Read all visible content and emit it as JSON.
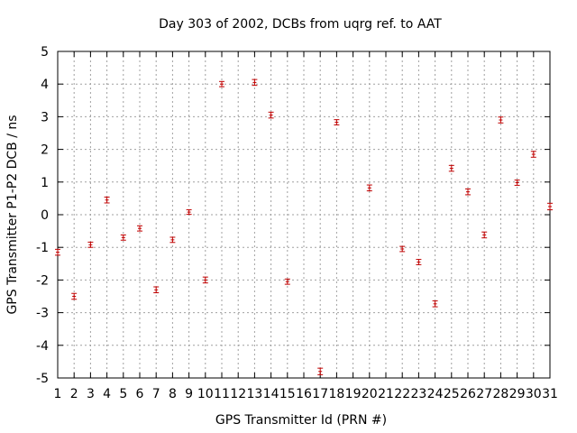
{
  "chart_data": {
    "type": "scatter",
    "title": "Day 303 of 2002, DCBs from uqrg ref. to AAT",
    "xlabel": "GPS Transmitter Id (PRN #)",
    "ylabel": "GPS Transmitter P1-P2 DCB / ns",
    "xlim": [
      1,
      31
    ],
    "ylim": [
      -5,
      5
    ],
    "xticks": [
      1,
      2,
      3,
      4,
      5,
      6,
      7,
      8,
      9,
      10,
      11,
      12,
      13,
      14,
      15,
      16,
      17,
      18,
      19,
      20,
      21,
      22,
      23,
      24,
      25,
      26,
      27,
      28,
      29,
      30,
      31
    ],
    "yticks": [
      -5,
      -4,
      -3,
      -2,
      -1,
      0,
      1,
      2,
      3,
      4,
      5
    ],
    "grid": true,
    "series": [
      {
        "name": "DCB",
        "color": "#c00000",
        "points": [
          {
            "x": 1,
            "y": -1.15,
            "err": 0.09
          },
          {
            "x": 2,
            "y": -2.5,
            "err": 0.09
          },
          {
            "x": 3,
            "y": -0.92,
            "err": 0.08
          },
          {
            "x": 4,
            "y": 0.45,
            "err": 0.09
          },
          {
            "x": 5,
            "y": -0.7,
            "err": 0.08
          },
          {
            "x": 6,
            "y": -0.42,
            "err": 0.08
          },
          {
            "x": 7,
            "y": -2.3,
            "err": 0.09
          },
          {
            "x": 8,
            "y": -0.77,
            "err": 0.08
          },
          {
            "x": 9,
            "y": 0.08,
            "err": 0.07
          },
          {
            "x": 10,
            "y": -2.0,
            "err": 0.09
          },
          {
            "x": 11,
            "y": 4.0,
            "err": 0.08
          },
          {
            "x": 13,
            "y": 4.05,
            "err": 0.09
          },
          {
            "x": 14,
            "y": 3.05,
            "err": 0.09
          },
          {
            "x": 15,
            "y": -2.05,
            "err": 0.08
          },
          {
            "x": 17,
            "y": -4.8,
            "err": 0.1
          },
          {
            "x": 18,
            "y": 2.83,
            "err": 0.08
          },
          {
            "x": 20,
            "y": 0.82,
            "err": 0.09
          },
          {
            "x": 22,
            "y": -1.05,
            "err": 0.08
          },
          {
            "x": 23,
            "y": -1.45,
            "err": 0.08
          },
          {
            "x": 24,
            "y": -2.73,
            "err": 0.09
          },
          {
            "x": 25,
            "y": 1.42,
            "err": 0.09
          },
          {
            "x": 26,
            "y": 0.7,
            "err": 0.09
          },
          {
            "x": 27,
            "y": -0.62,
            "err": 0.09
          },
          {
            "x": 28,
            "y": 2.9,
            "err": 0.09
          },
          {
            "x": 29,
            "y": 0.98,
            "err": 0.08
          },
          {
            "x": 30,
            "y": 1.85,
            "err": 0.09
          },
          {
            "x": 31,
            "y": 0.25,
            "err": 0.1
          }
        ]
      }
    ]
  }
}
